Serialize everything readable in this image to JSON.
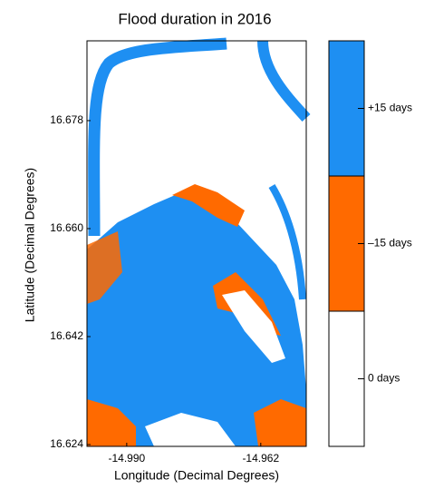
{
  "chart_data": {
    "type": "raster-map",
    "title": "Flood duration in 2016",
    "x_label": "Longitude (Decimal Degrees)",
    "y_label": "Latitude (Decimal Degrees)",
    "xlim": [
      -14.9983,
      -14.9525
    ],
    "xticks": [
      {
        "value": -14.99,
        "label": "-14.990"
      },
      -14.962
    ],
    "ylim": [
      16.6237,
      16.6913
    ],
    "yticks": [
      16.624,
      16.642,
      {
        "value": 16.66,
        "label": "16.660"
      },
      16.678
    ],
    "colorbar": {
      "labels": [
        "+15 days",
        "–15 days",
        "0 days"
      ],
      "colors": [
        "#1e8ff2",
        "#ff6a00",
        "#ffffff"
      ]
    }
  }
}
